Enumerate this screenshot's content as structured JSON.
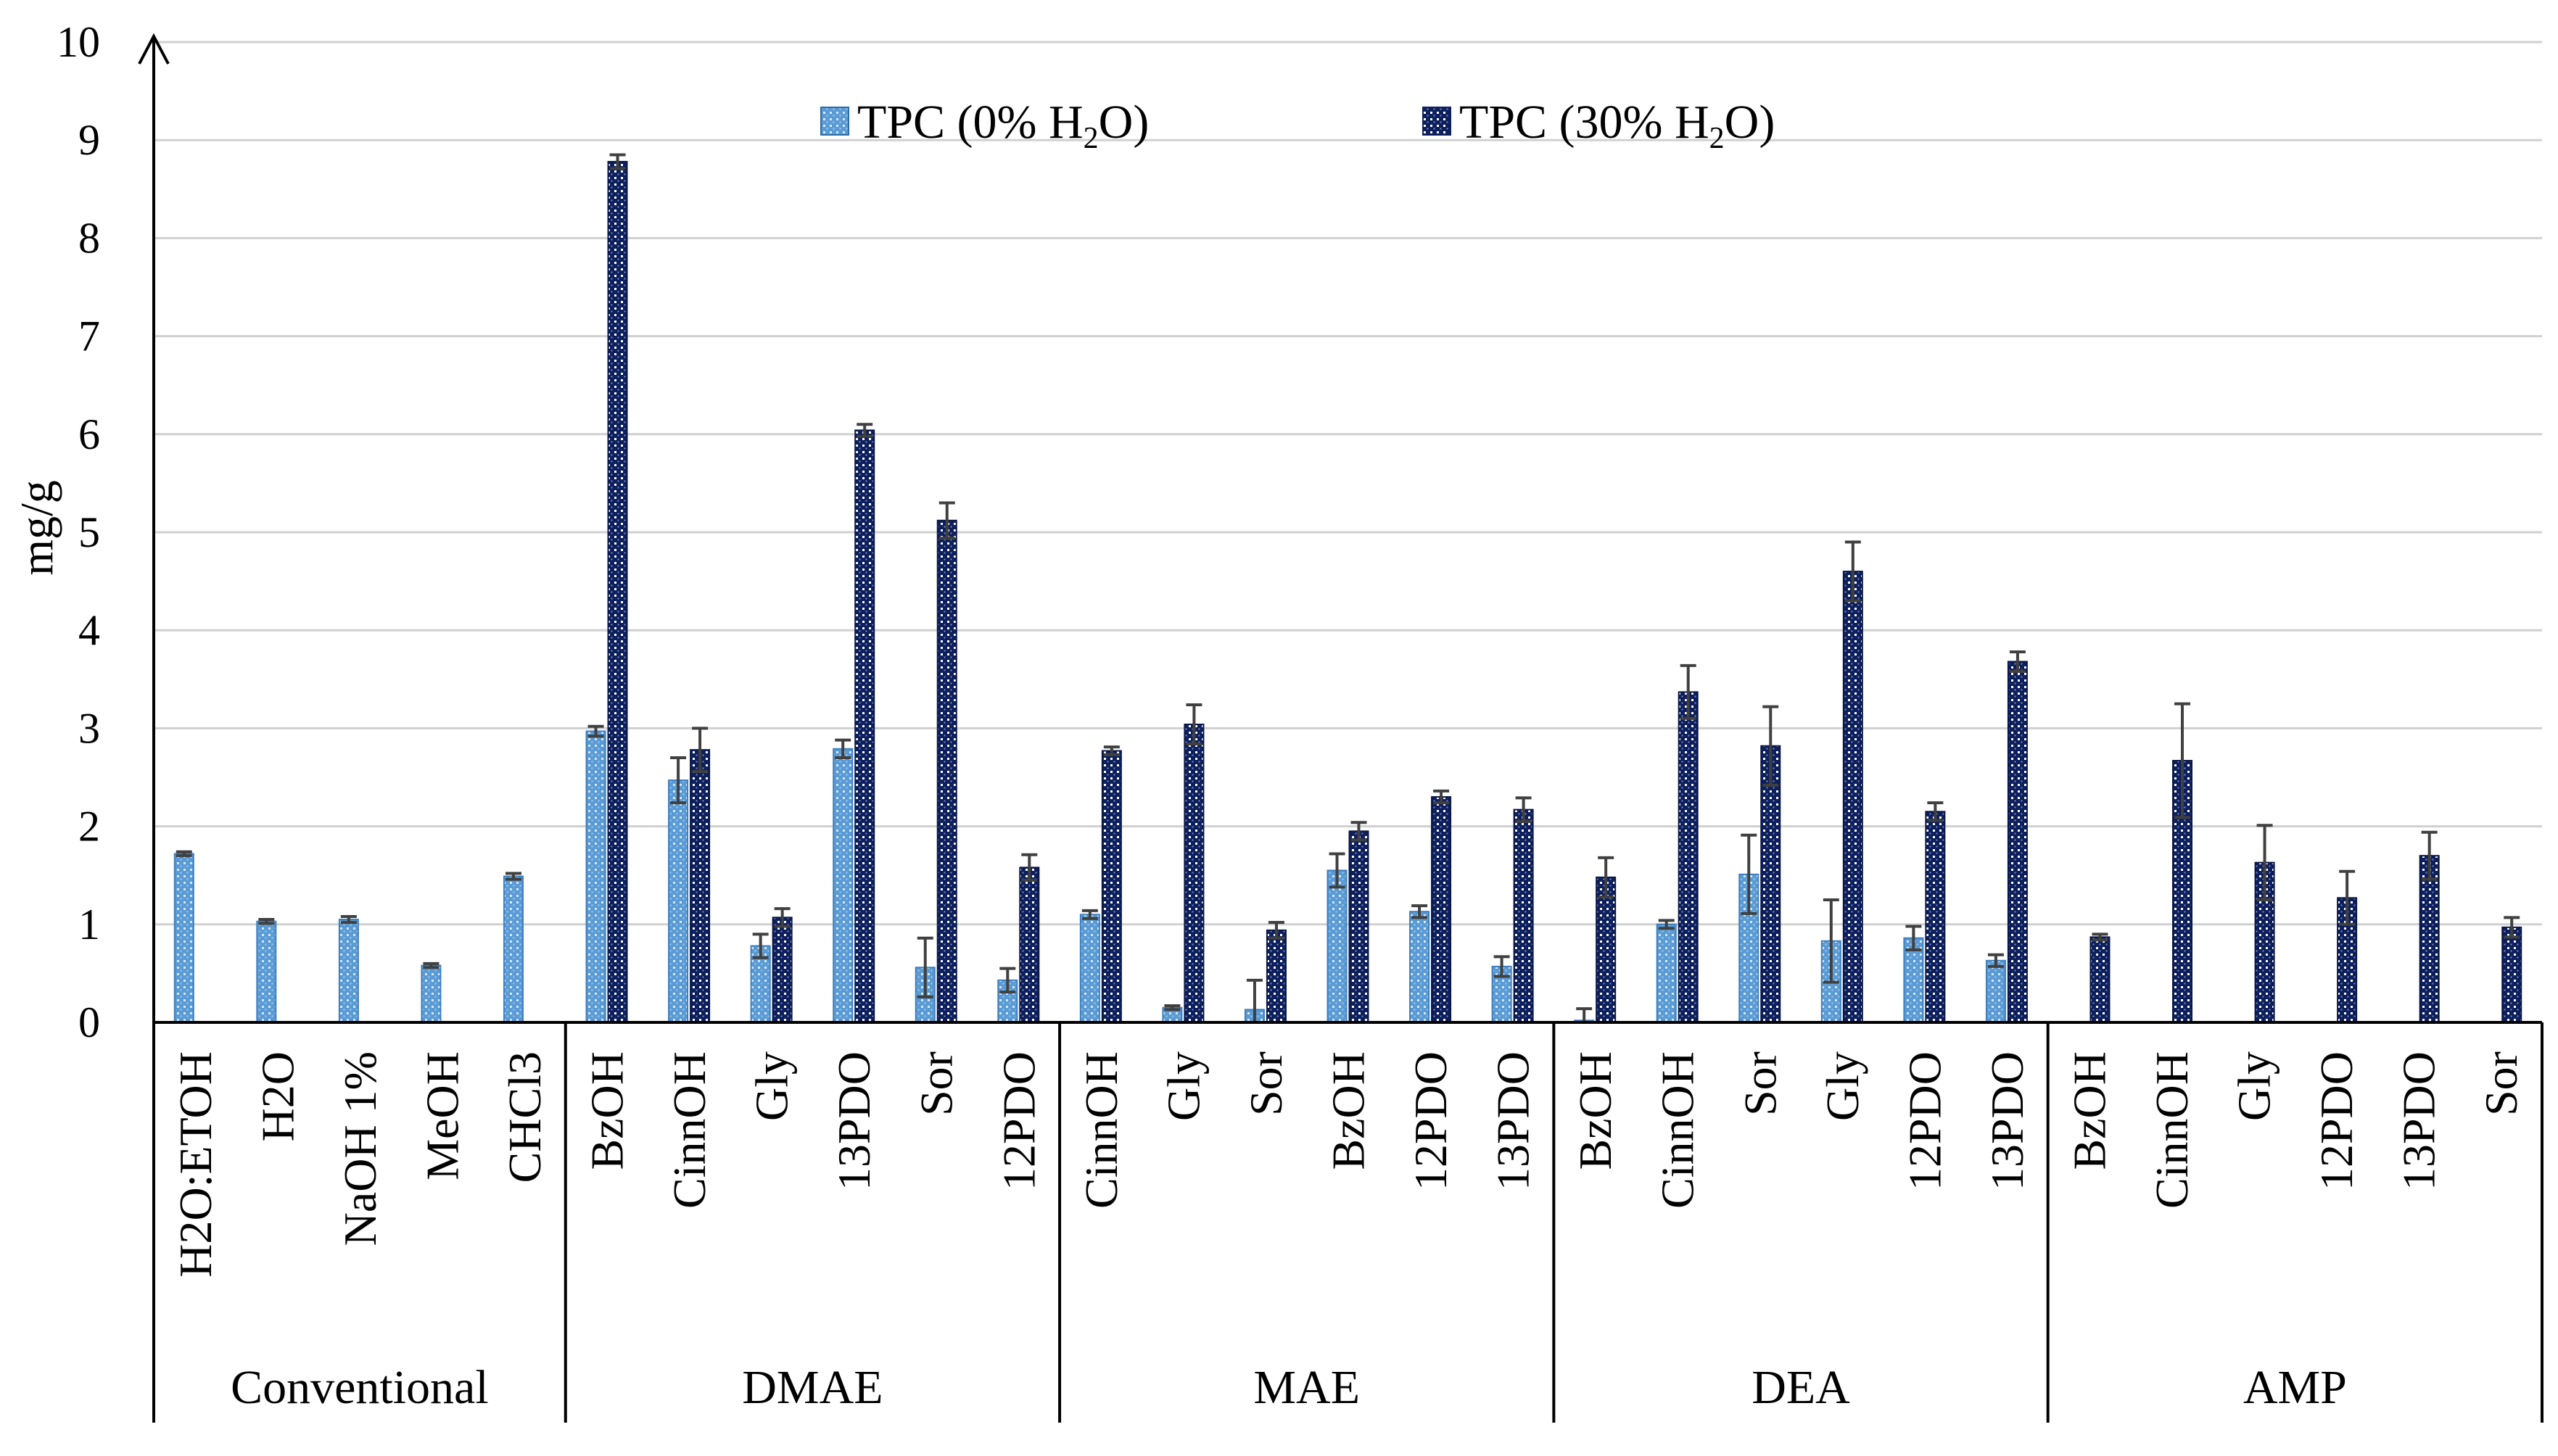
{
  "chart_data": {
    "type": "bar",
    "title": "",
    "ylabel": "mg/g",
    "xlabel": "",
    "ylim": [
      0,
      10
    ],
    "yticks": [
      0,
      1,
      2,
      3,
      4,
      5,
      6,
      7,
      8,
      9,
      10
    ],
    "grid": true,
    "legend_position": "top-center",
    "colors": {
      "tpc0": "#5b9bd5",
      "tpc30": "#0d1f5c",
      "grid": "#d0d0d0",
      "axis": "#000000"
    },
    "series": [
      {
        "key": "tpc0",
        "name": "TPC (0% H",
        "sub": "2",
        "suffix": "O)"
      },
      {
        "key": "tpc30",
        "name": "TPC (30% H",
        "sub": "2",
        "suffix": "O)"
      }
    ],
    "groups": [
      {
        "name": "Conventional",
        "categories": [
          {
            "label": "H2O:ETOH",
            "tpc0": 1.72,
            "err0": 0.02,
            "tpc30": null,
            "err30": null
          },
          {
            "label": "H2O",
            "tpc0": 1.03,
            "err0": 0.02,
            "tpc30": null,
            "err30": null
          },
          {
            "label": "NaOH 1%",
            "tpc0": 1.05,
            "err0": 0.03,
            "tpc30": null,
            "err30": null
          },
          {
            "label": "MeOH",
            "tpc0": 0.58,
            "err0": 0.02,
            "tpc30": null,
            "err30": null
          },
          {
            "label": "CHCl3",
            "tpc0": 1.49,
            "err0": 0.03,
            "tpc30": null,
            "err30": null
          }
        ]
      },
      {
        "name": "DMAE",
        "categories": [
          {
            "label": "BzOH",
            "tpc0": 2.97,
            "err0": 0.05,
            "tpc30": 8.78,
            "err30": 0.07
          },
          {
            "label": "CinnOH",
            "tpc0": 2.47,
            "err0": 0.23,
            "tpc30": 2.78,
            "err30": 0.22
          },
          {
            "label": "Gly",
            "tpc0": 0.78,
            "err0": 0.12,
            "tpc30": 1.07,
            "err30": 0.09
          },
          {
            "label": "13PDO",
            "tpc0": 2.79,
            "err0": 0.09,
            "tpc30": 6.04,
            "err30": 0.06
          },
          {
            "label": "Sor",
            "tpc0": 0.56,
            "err0": 0.3,
            "tpc30": 5.12,
            "err30": 0.18
          },
          {
            "label": "12PDO",
            "tpc0": 0.43,
            "err0": 0.12,
            "tpc30": 1.58,
            "err30": 0.13
          }
        ]
      },
      {
        "name": "MAE",
        "categories": [
          {
            "label": "CinnOH",
            "tpc0": 1.1,
            "err0": 0.04,
            "tpc30": 2.77,
            "err30": 0.04
          },
          {
            "label": "Gly",
            "tpc0": 0.15,
            "err0": 0.02,
            "tpc30": 3.04,
            "err30": 0.2
          },
          {
            "label": "Sor",
            "tpc0": 0.13,
            "err0": 0.3,
            "tpc30": 0.94,
            "err30": 0.08
          },
          {
            "label": "BzOH",
            "tpc0": 1.55,
            "err0": 0.17,
            "tpc30": 1.95,
            "err30": 0.09
          },
          {
            "label": "12PDO",
            "tpc0": 1.13,
            "err0": 0.06,
            "tpc30": 2.3,
            "err30": 0.06
          },
          {
            "label": "13PDO",
            "tpc0": 0.57,
            "err0": 0.1,
            "tpc30": 2.17,
            "err30": 0.12
          }
        ]
      },
      {
        "name": "DEA",
        "categories": [
          {
            "label": "BzOH",
            "tpc0": 0.02,
            "err0": 0.12,
            "tpc30": 1.48,
            "err30": 0.2
          },
          {
            "label": "CinnOH",
            "tpc0": 1.0,
            "err0": 0.04,
            "tpc30": 3.37,
            "err30": 0.27
          },
          {
            "label": "Sor",
            "tpc0": 1.51,
            "err0": 0.4,
            "tpc30": 2.82,
            "err30": 0.4
          },
          {
            "label": "Gly",
            "tpc0": 0.83,
            "err0": 0.42,
            "tpc30": 4.6,
            "err30": 0.3
          },
          {
            "label": "12PDO",
            "tpc0": 0.86,
            "err0": 0.12,
            "tpc30": 2.15,
            "err30": 0.09
          },
          {
            "label": "13PDO",
            "tpc0": 0.63,
            "err0": 0.06,
            "tpc30": 3.68,
            "err30": 0.1
          }
        ]
      },
      {
        "name": "AMP",
        "categories": [
          {
            "label": "BzOH",
            "tpc0": null,
            "err0": null,
            "tpc30": 0.87,
            "err30": 0.03
          },
          {
            "label": "CinnOH",
            "tpc0": null,
            "err0": null,
            "tpc30": 2.67,
            "err30": 0.58
          },
          {
            "label": "Gly",
            "tpc0": null,
            "err0": null,
            "tpc30": 1.63,
            "err30": 0.38
          },
          {
            "label": "12PDO",
            "tpc0": null,
            "err0": null,
            "tpc30": 1.27,
            "err30": 0.27
          },
          {
            "label": "13PDO",
            "tpc0": null,
            "err0": null,
            "tpc30": 1.7,
            "err30": 0.24
          },
          {
            "label": "Sor",
            "tpc0": null,
            "err0": null,
            "tpc30": 0.97,
            "err30": 0.1
          }
        ]
      }
    ]
  }
}
